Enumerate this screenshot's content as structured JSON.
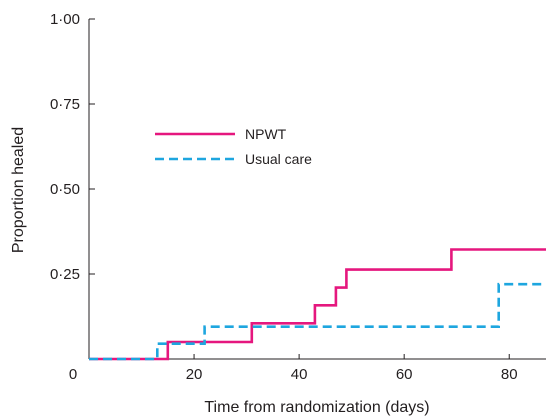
{
  "chart_data": {
    "type": "line",
    "step": true,
    "xlabel": "Time from randomization (days)",
    "ylabel": "Proportion healed",
    "xlim": [
      0,
      87
    ],
    "ylim": [
      0,
      1
    ],
    "x_ticks": [
      0,
      20,
      40,
      60,
      80
    ],
    "x_tick_labels": [
      "0",
      "20",
      "40",
      "60",
      "80"
    ],
    "y_ticks": [
      0.25,
      0.5,
      0.75,
      1.0
    ],
    "y_tick_labels": [
      "0·25",
      "0·50",
      "0·75",
      "1·00"
    ],
    "grid": false,
    "legend_position": "center-left",
    "series": [
      {
        "name": "NPWT",
        "color": "#e5177e",
        "dash": "solid",
        "points": [
          [
            0,
            0
          ],
          [
            15,
            0
          ],
          [
            15,
            0.05
          ],
          [
            31,
            0.05
          ],
          [
            31,
            0.105
          ],
          [
            43,
            0.105
          ],
          [
            43,
            0.158
          ],
          [
            47,
            0.158
          ],
          [
            47,
            0.21
          ],
          [
            49,
            0.21
          ],
          [
            49,
            0.263
          ],
          [
            69,
            0.263
          ],
          [
            69,
            0.322
          ],
          [
            87,
            0.322
          ]
        ]
      },
      {
        "name": "Usual care",
        "color": "#1ea6df",
        "dash": "dashed",
        "points": [
          [
            0,
            0
          ],
          [
            13,
            0
          ],
          [
            13,
            0.045
          ],
          [
            22,
            0.045
          ],
          [
            22,
            0.095
          ],
          [
            78,
            0.095
          ],
          [
            78,
            0.22
          ],
          [
            87,
            0.22
          ]
        ]
      }
    ]
  }
}
